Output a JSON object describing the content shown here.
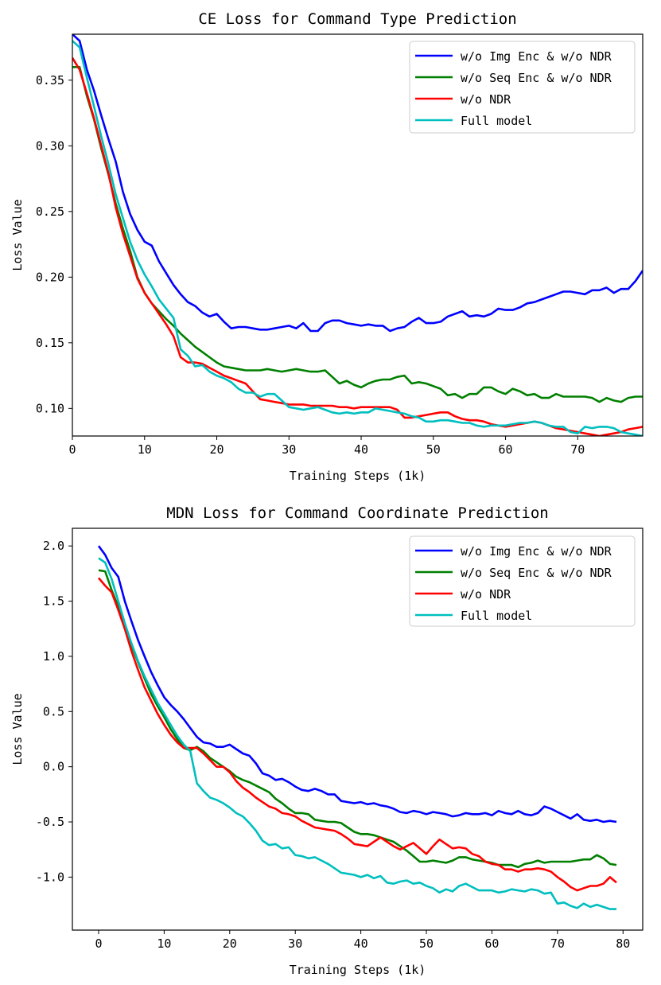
{
  "chart_data": [
    {
      "type": "line",
      "title": "CE Loss for Command Type Prediction",
      "xlabel": "Training Steps (1k)",
      "ylabel": "Loss Value",
      "xlim": [
        0,
        79
      ],
      "ylim": [
        0.079,
        0.385
      ],
      "xticks": [
        0,
        10,
        20,
        30,
        40,
        50,
        60,
        70
      ],
      "yticks": [
        0.1,
        0.15,
        0.2,
        0.25,
        0.3,
        0.35
      ],
      "yticklabels": [
        "0.10",
        "0.15",
        "0.20",
        "0.25",
        "0.30",
        "0.35"
      ],
      "grid": false,
      "legend_position": "top-right",
      "x": [
        0,
        1,
        2,
        3,
        4,
        5,
        6,
        7,
        8,
        9,
        10,
        11,
        12,
        13,
        14,
        15,
        16,
        17,
        18,
        19,
        20,
        21,
        22,
        23,
        24,
        25,
        26,
        27,
        28,
        29,
        30,
        31,
        32,
        33,
        34,
        35,
        36,
        37,
        38,
        39,
        40,
        41,
        42,
        43,
        44,
        45,
        46,
        47,
        48,
        49,
        50,
        51,
        52,
        53,
        54,
        55,
        56,
        57,
        58,
        59,
        60,
        61,
        62,
        63,
        64,
        65,
        66,
        67,
        68,
        69,
        70,
        71,
        72,
        73,
        74,
        75,
        76,
        77,
        78,
        79
      ],
      "series": [
        {
          "name": "w/o Img Enc & w/o NDR",
          "color": "#0000ff",
          "values": [
            0.385,
            0.38,
            0.358,
            0.342,
            0.323,
            0.305,
            0.288,
            0.265,
            0.248,
            0.236,
            0.227,
            0.224,
            0.212,
            0.203,
            0.194,
            0.187,
            0.181,
            0.178,
            0.173,
            0.17,
            0.172,
            0.166,
            0.161,
            0.162,
            0.162,
            0.161,
            0.16,
            0.16,
            0.161,
            0.162,
            0.163,
            0.161,
            0.165,
            0.159,
            0.159,
            0.165,
            0.167,
            0.167,
            0.165,
            0.164,
            0.163,
            0.164,
            0.163,
            0.163,
            0.159,
            0.161,
            0.162,
            0.166,
            0.169,
            0.165,
            0.165,
            0.166,
            0.17,
            0.172,
            0.174,
            0.17,
            0.171,
            0.17,
            0.172,
            0.176,
            0.175,
            0.175,
            0.177,
            0.18,
            0.181,
            0.183,
            0.185,
            0.187,
            0.189,
            0.189,
            0.188,
            0.187,
            0.19,
            0.19,
            0.192,
            0.188,
            0.191,
            0.191,
            0.197,
            0.205
          ]
        },
        {
          "name": "w/o Seq Enc & w/o NDR",
          "color": "#008000",
          "values": [
            0.36,
            0.36,
            0.338,
            0.32,
            0.298,
            0.278,
            0.256,
            0.237,
            0.22,
            0.2,
            0.188,
            0.18,
            0.174,
            0.168,
            0.163,
            0.157,
            0.152,
            0.147,
            0.143,
            0.139,
            0.135,
            0.132,
            0.131,
            0.13,
            0.129,
            0.129,
            0.129,
            0.13,
            0.129,
            0.128,
            0.129,
            0.13,
            0.129,
            0.128,
            0.128,
            0.129,
            0.124,
            0.119,
            0.121,
            0.118,
            0.116,
            0.119,
            0.121,
            0.122,
            0.122,
            0.124,
            0.125,
            0.119,
            0.12,
            0.119,
            0.117,
            0.115,
            0.11,
            0.111,
            0.108,
            0.111,
            0.111,
            0.116,
            0.116,
            0.113,
            0.111,
            0.115,
            0.113,
            0.11,
            0.111,
            0.108,
            0.108,
            0.111,
            0.109,
            0.109,
            0.109,
            0.109,
            0.108,
            0.105,
            0.108,
            0.106,
            0.105,
            0.108,
            0.109,
            0.109
          ]
        },
        {
          "name": "w/o NDR",
          "color": "#ff0000",
          "values": [
            0.367,
            0.358,
            0.34,
            0.321,
            0.3,
            0.279,
            0.253,
            0.233,
            0.216,
            0.199,
            0.188,
            0.18,
            0.172,
            0.164,
            0.155,
            0.139,
            0.135,
            0.135,
            0.134,
            0.131,
            0.128,
            0.125,
            0.123,
            0.121,
            0.119,
            0.113,
            0.107,
            0.106,
            0.105,
            0.104,
            0.103,
            0.103,
            0.103,
            0.102,
            0.102,
            0.102,
            0.102,
            0.101,
            0.101,
            0.1,
            0.101,
            0.101,
            0.101,
            0.101,
            0.101,
            0.099,
            0.093,
            0.093,
            0.094,
            0.095,
            0.096,
            0.097,
            0.097,
            0.094,
            0.092,
            0.091,
            0.091,
            0.09,
            0.088,
            0.087,
            0.086,
            0.087,
            0.088,
            0.089,
            0.09,
            0.089,
            0.087,
            0.085,
            0.084,
            0.083,
            0.082,
            0.081,
            0.08,
            0.079,
            0.08,
            0.081,
            0.082,
            0.084,
            0.085,
            0.086
          ]
        },
        {
          "name": "Full model",
          "color": "#00bfbf",
          "values": [
            0.38,
            0.375,
            0.352,
            0.33,
            0.307,
            0.286,
            0.263,
            0.245,
            0.227,
            0.213,
            0.202,
            0.193,
            0.183,
            0.176,
            0.169,
            0.145,
            0.14,
            0.132,
            0.133,
            0.128,
            0.125,
            0.123,
            0.12,
            0.115,
            0.112,
            0.112,
            0.109,
            0.111,
            0.111,
            0.106,
            0.101,
            0.1,
            0.099,
            0.1,
            0.101,
            0.099,
            0.097,
            0.096,
            0.097,
            0.096,
            0.097,
            0.097,
            0.1,
            0.099,
            0.098,
            0.097,
            0.096,
            0.094,
            0.093,
            0.09,
            0.09,
            0.091,
            0.091,
            0.09,
            0.089,
            0.089,
            0.087,
            0.086,
            0.087,
            0.087,
            0.087,
            0.088,
            0.089,
            0.089,
            0.09,
            0.089,
            0.087,
            0.086,
            0.086,
            0.082,
            0.081,
            0.086,
            0.085,
            0.086,
            0.086,
            0.085,
            0.082,
            0.081,
            0.08,
            0.079
          ]
        }
      ]
    },
    {
      "type": "line",
      "title": "MDN Loss for Command Coordinate Prediction",
      "xlabel": "Training Steps (1k)",
      "ylabel": "Loss Value",
      "xlim": [
        -4,
        83
      ],
      "ylim": [
        -1.48,
        2.16
      ],
      "xticks": [
        0,
        10,
        20,
        30,
        40,
        50,
        60,
        70,
        80
      ],
      "yticks": [
        -1.0,
        -0.5,
        0.0,
        0.5,
        1.0,
        1.5,
        2.0
      ],
      "yticklabels": [
        "-1.0",
        "-0.5",
        "0.0",
        "0.5",
        "1.0",
        "1.5",
        "2.0"
      ],
      "grid": false,
      "legend_position": "top-right",
      "x": [
        0,
        1,
        2,
        3,
        4,
        5,
        6,
        7,
        8,
        9,
        10,
        11,
        12,
        13,
        14,
        15,
        16,
        17,
        18,
        19,
        20,
        21,
        22,
        23,
        24,
        25,
        26,
        27,
        28,
        29,
        30,
        31,
        32,
        33,
        34,
        35,
        36,
        37,
        38,
        39,
        40,
        41,
        42,
        43,
        44,
        45,
        46,
        47,
        48,
        49,
        50,
        51,
        52,
        53,
        54,
        55,
        56,
        57,
        58,
        59,
        60,
        61,
        62,
        63,
        64,
        65,
        66,
        67,
        68,
        69,
        70,
        71,
        72,
        73,
        74,
        75,
        76,
        77,
        78,
        79
      ],
      "series": [
        {
          "name": "w/o Img Enc & w/o NDR",
          "color": "#0000ff",
          "values": [
            2.0,
            1.92,
            1.8,
            1.72,
            1.5,
            1.32,
            1.15,
            1.0,
            0.86,
            0.74,
            0.63,
            0.56,
            0.5,
            0.43,
            0.35,
            0.27,
            0.22,
            0.21,
            0.18,
            0.18,
            0.2,
            0.16,
            0.12,
            0.1,
            0.03,
            -0.06,
            -0.08,
            -0.12,
            -0.11,
            -0.14,
            -0.18,
            -0.21,
            -0.22,
            -0.2,
            -0.22,
            -0.25,
            -0.25,
            -0.31,
            -0.32,
            -0.33,
            -0.32,
            -0.34,
            -0.33,
            -0.35,
            -0.36,
            -0.38,
            -0.41,
            -0.42,
            -0.4,
            -0.41,
            -0.43,
            -0.41,
            -0.42,
            -0.43,
            -0.45,
            -0.44,
            -0.42,
            -0.43,
            -0.43,
            -0.42,
            -0.44,
            -0.4,
            -0.42,
            -0.43,
            -0.4,
            -0.43,
            -0.44,
            -0.42,
            -0.36,
            -0.38,
            -0.41,
            -0.44,
            -0.47,
            -0.43,
            -0.48,
            -0.49,
            -0.48,
            -0.5,
            -0.49,
            -0.5
          ]
        },
        {
          "name": "w/o Seq Enc & w/o NDR",
          "color": "#008000",
          "values": [
            1.78,
            1.77,
            1.6,
            1.45,
            1.25,
            1.1,
            0.95,
            0.8,
            0.66,
            0.55,
            0.45,
            0.34,
            0.25,
            0.17,
            0.15,
            0.18,
            0.14,
            0.08,
            0.04,
            0.0,
            -0.04,
            -0.09,
            -0.12,
            -0.14,
            -0.17,
            -0.2,
            -0.23,
            -0.29,
            -0.33,
            -0.38,
            -0.42,
            -0.42,
            -0.43,
            -0.48,
            -0.49,
            -0.5,
            -0.5,
            -0.51,
            -0.55,
            -0.59,
            -0.61,
            -0.61,
            -0.62,
            -0.64,
            -0.66,
            -0.68,
            -0.72,
            -0.76,
            -0.81,
            -0.86,
            -0.86,
            -0.85,
            -0.86,
            -0.87,
            -0.85,
            -0.82,
            -0.82,
            -0.84,
            -0.85,
            -0.86,
            -0.87,
            -0.89,
            -0.89,
            -0.89,
            -0.91,
            -0.88,
            -0.87,
            -0.85,
            -0.87,
            -0.86,
            -0.86,
            -0.86,
            -0.86,
            -0.85,
            -0.84,
            -0.84,
            -0.8,
            -0.83,
            -0.88,
            -0.89
          ]
        },
        {
          "name": "w/o NDR",
          "color": "#ff0000",
          "values": [
            1.71,
            1.64,
            1.58,
            1.42,
            1.25,
            1.05,
            0.88,
            0.72,
            0.6,
            0.48,
            0.38,
            0.29,
            0.22,
            0.17,
            0.17,
            0.17,
            0.12,
            0.06,
            0.0,
            0.0,
            -0.05,
            -0.13,
            -0.19,
            -0.23,
            -0.28,
            -0.32,
            -0.36,
            -0.38,
            -0.42,
            -0.43,
            -0.45,
            -0.49,
            -0.52,
            -0.55,
            -0.56,
            -0.57,
            -0.58,
            -0.61,
            -0.65,
            -0.7,
            -0.71,
            -0.72,
            -0.68,
            -0.64,
            -0.68,
            -0.72,
            -0.75,
            -0.72,
            -0.69,
            -0.74,
            -0.79,
            -0.72,
            -0.66,
            -0.7,
            -0.74,
            -0.73,
            -0.74,
            -0.79,
            -0.81,
            -0.86,
            -0.88,
            -0.89,
            -0.93,
            -0.93,
            -0.95,
            -0.93,
            -0.93,
            -0.92,
            -0.93,
            -0.95,
            -1.0,
            -1.04,
            -1.09,
            -1.12,
            -1.1,
            -1.08,
            -1.08,
            -1.06,
            -1.0,
            -1.05
          ]
        },
        {
          "name": "Full model",
          "color": "#00bfbf",
          "values": [
            1.89,
            1.85,
            1.7,
            1.5,
            1.3,
            1.12,
            0.96,
            0.82,
            0.7,
            0.58,
            0.48,
            0.38,
            0.28,
            0.2,
            0.14,
            -0.15,
            -0.22,
            -0.28,
            -0.3,
            -0.33,
            -0.37,
            -0.42,
            -0.45,
            -0.51,
            -0.58,
            -0.67,
            -0.71,
            -0.7,
            -0.74,
            -0.73,
            -0.8,
            -0.81,
            -0.83,
            -0.82,
            -0.85,
            -0.88,
            -0.92,
            -0.96,
            -0.97,
            -0.98,
            -1.0,
            -0.98,
            -1.01,
            -0.99,
            -1.05,
            -1.06,
            -1.04,
            -1.03,
            -1.06,
            -1.05,
            -1.08,
            -1.1,
            -1.14,
            -1.11,
            -1.13,
            -1.08,
            -1.06,
            -1.09,
            -1.12,
            -1.12,
            -1.12,
            -1.14,
            -1.13,
            -1.11,
            -1.12,
            -1.13,
            -1.11,
            -1.12,
            -1.15,
            -1.14,
            -1.24,
            -1.23,
            -1.26,
            -1.28,
            -1.24,
            -1.27,
            -1.25,
            -1.27,
            -1.29,
            -1.29
          ]
        }
      ]
    }
  ]
}
